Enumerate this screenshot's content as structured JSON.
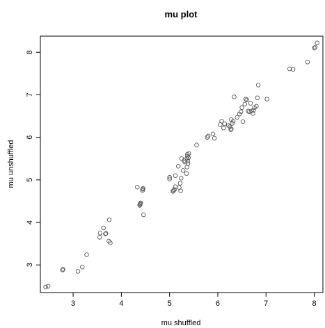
{
  "chart_data": {
    "type": "scatter",
    "title": "mu plot",
    "xlabel": "mu shuffled",
    "ylabel": "mu unshuffled",
    "xlim": [
      2.32,
      8.18
    ],
    "ylim": [
      2.35,
      8.38
    ],
    "xticks": [
      3,
      4,
      5,
      6,
      7,
      8
    ],
    "yticks": [
      3,
      4,
      5,
      6,
      7,
      8
    ],
    "grid": false,
    "legend": "none",
    "marker_color": "#555555",
    "points": [
      [
        2.43,
        2.48
      ],
      [
        2.48,
        2.5
      ],
      [
        2.78,
        2.88
      ],
      [
        2.79,
        2.9
      ],
      [
        3.1,
        2.85
      ],
      [
        3.19,
        2.95
      ],
      [
        3.28,
        3.24
      ],
      [
        3.55,
        3.65
      ],
      [
        3.56,
        3.75
      ],
      [
        3.63,
        3.87
      ],
      [
        3.67,
        3.73
      ],
      [
        3.68,
        3.74
      ],
      [
        3.74,
        3.56
      ],
      [
        3.77,
        3.52
      ],
      [
        3.75,
        4.06
      ],
      [
        4.33,
        4.83
      ],
      [
        4.38,
        4.4
      ],
      [
        4.39,
        4.42
      ],
      [
        4.39,
        4.44
      ],
      [
        4.4,
        4.46
      ],
      [
        4.44,
        4.75
      ],
      [
        4.44,
        4.78
      ],
      [
        4.45,
        4.8
      ],
      [
        4.46,
        4.18
      ],
      [
        5.0,
        5.02
      ],
      [
        5.0,
        5.06
      ],
      [
        5.07,
        4.73
      ],
      [
        5.08,
        4.75
      ],
      [
        5.1,
        4.77
      ],
      [
        5.12,
        4.84
      ],
      [
        5.12,
        5.1
      ],
      [
        5.18,
        5.32
      ],
      [
        5.2,
        4.82
      ],
      [
        5.22,
        4.92
      ],
      [
        5.24,
        5.04
      ],
      [
        5.23,
        4.74
      ],
      [
        5.25,
        5.5
      ],
      [
        5.28,
        5.22
      ],
      [
        5.3,
        5.45
      ],
      [
        5.32,
        5.42
      ],
      [
        5.35,
        5.15
      ],
      [
        5.36,
        5.3
      ],
      [
        5.36,
        5.5
      ],
      [
        5.37,
        5.56
      ],
      [
        5.37,
        5.6
      ],
      [
        5.38,
        5.38
      ],
      [
        5.38,
        5.44
      ],
      [
        5.39,
        5.52
      ],
      [
        5.4,
        5.62
      ],
      [
        5.56,
        5.82
      ],
      [
        5.78,
        6.0
      ],
      [
        5.8,
        6.03
      ],
      [
        5.9,
        6.08
      ],
      [
        5.93,
        5.98
      ],
      [
        6.05,
        6.3
      ],
      [
        6.08,
        6.38
      ],
      [
        6.12,
        6.22
      ],
      [
        6.14,
        6.32
      ],
      [
        6.22,
        6.28
      ],
      [
        6.25,
        6.25
      ],
      [
        6.27,
        6.18
      ],
      [
        6.28,
        6.2
      ],
      [
        6.28,
        6.42
      ],
      [
        6.3,
        6.33
      ],
      [
        6.32,
        6.38
      ],
      [
        6.34,
        6.95
      ],
      [
        6.4,
        6.47
      ],
      [
        6.45,
        6.55
      ],
      [
        6.48,
        6.6
      ],
      [
        6.5,
        6.7
      ],
      [
        6.52,
        6.37
      ],
      [
        6.56,
        6.78
      ],
      [
        6.58,
        6.9
      ],
      [
        6.6,
        6.88
      ],
      [
        6.63,
        6.62
      ],
      [
        6.65,
        6.6
      ],
      [
        6.68,
        6.8
      ],
      [
        6.7,
        6.62
      ],
      [
        6.73,
        6.56
      ],
      [
        6.74,
        6.64
      ],
      [
        6.76,
        6.7
      ],
      [
        6.8,
        6.73
      ],
      [
        6.82,
        6.93
      ],
      [
        6.84,
        7.23
      ],
      [
        7.02,
        6.9
      ],
      [
        7.49,
        7.61
      ],
      [
        7.56,
        7.6
      ],
      [
        7.86,
        7.77
      ],
      [
        8.0,
        8.1
      ],
      [
        8.02,
        8.12
      ],
      [
        8.06,
        8.22
      ]
    ]
  }
}
